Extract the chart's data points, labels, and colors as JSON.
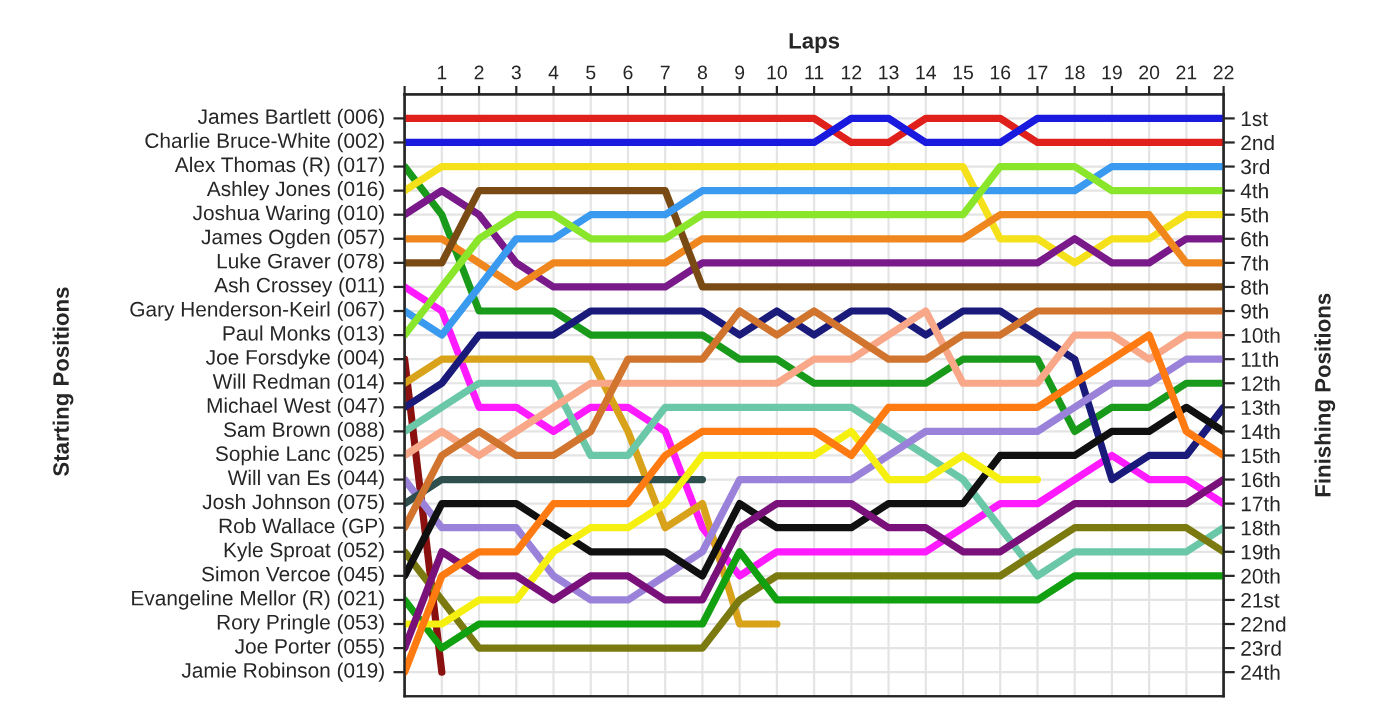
{
  "chart_data": {
    "type": "line",
    "xlabel": "Laps",
    "annotations": [
      "Starting Positions"
    ],
    "y2label": "Finishing Positions",
    "x": [
      0,
      1,
      2,
      3,
      4,
      5,
      6,
      7,
      8,
      9,
      10,
      11,
      12,
      13,
      14,
      15,
      16,
      17,
      18,
      19,
      20,
      21,
      22
    ],
    "xlim": [
      0,
      22
    ],
    "xticks": [
      {
        "value": 0,
        "label": null
      },
      1,
      2,
      3,
      4,
      5,
      6,
      7,
      8,
      9,
      10,
      11,
      12,
      13,
      14,
      15,
      16,
      17,
      18,
      19,
      20,
      21,
      22
    ],
    "y2lim": [
      25,
      0
    ],
    "y2ticks": [
      {
        "value": 1,
        "label": "1st"
      },
      {
        "value": 2,
        "label": "2nd"
      },
      {
        "value": 3,
        "label": "3rd"
      },
      {
        "value": 4,
        "label": "4th"
      },
      {
        "value": 5,
        "label": "5th"
      },
      {
        "value": 6,
        "label": "6th"
      },
      {
        "value": 7,
        "label": "7th"
      },
      {
        "value": 8,
        "label": "8th"
      },
      {
        "value": 9,
        "label": "9th"
      },
      {
        "value": 10,
        "label": "10th"
      },
      {
        "value": 11,
        "label": "11th"
      },
      {
        "value": 12,
        "label": "12th"
      },
      {
        "value": 13,
        "label": "13th"
      },
      {
        "value": 14,
        "label": "14th"
      },
      {
        "value": 15,
        "label": "15th"
      },
      {
        "value": 16,
        "label": "16th"
      },
      {
        "value": 17,
        "label": "17th"
      },
      {
        "value": 18,
        "label": "18th"
      },
      {
        "value": 19,
        "label": "19th"
      },
      {
        "value": 20,
        "label": "20th"
      },
      {
        "value": 21,
        "label": "21st"
      },
      {
        "value": 22,
        "label": "22nd"
      },
      {
        "value": 23,
        "label": "23rd"
      },
      {
        "value": 24,
        "label": "24th"
      }
    ],
    "grid": true,
    "legend": false,
    "marker": "none",
    "line_style": "solid",
    "series": [
      {
        "axis": "y2",
        "name": "James Bartlett (006)",
        "color": "#e0201b",
        "values": [
          1,
          1,
          1,
          1,
          1,
          1,
          1,
          1,
          1,
          1,
          1,
          1,
          2,
          2,
          1,
          1,
          1,
          2,
          2,
          2,
          2,
          2,
          2
        ]
      },
      {
        "axis": "y2",
        "name": "Charlie Bruce-White (002)",
        "color": "#1a1adf",
        "values": [
          2,
          2,
          2,
          2,
          2,
          2,
          2,
          2,
          2,
          2,
          2,
          2,
          1,
          1,
          2,
          2,
          2,
          1,
          1,
          1,
          1,
          1,
          1
        ]
      },
      {
        "axis": "y2",
        "name": "Alex Thomas (R) (017)",
        "color": "#1a9a1a",
        "values": [
          3,
          5,
          9,
          9,
          9,
          10,
          10,
          10,
          10,
          11,
          11,
          12,
          12,
          12,
          12,
          11,
          11,
          11,
          14,
          13,
          13,
          12,
          12
        ]
      },
      {
        "axis": "y2",
        "name": "Ashley Jones (016)",
        "color": "#f5e11a",
        "values": [
          4,
          3,
          3,
          3,
          3,
          3,
          3,
          3,
          3,
          3,
          3,
          3,
          3,
          3,
          3,
          3,
          6,
          6,
          7,
          6,
          6,
          5,
          5
        ]
      },
      {
        "axis": "y2",
        "name": "Joshua Waring (010)",
        "color": "#7a1a8a",
        "values": [
          5,
          4,
          5,
          7,
          8,
          8,
          8,
          8,
          7,
          7,
          7,
          7,
          7,
          7,
          7,
          7,
          7,
          7,
          6,
          7,
          7,
          6,
          6
        ]
      },
      {
        "axis": "y2",
        "name": "James Ogden (057)",
        "color": "#f0861e",
        "values": [
          6,
          6,
          7,
          8,
          7,
          7,
          7,
          7,
          6,
          6,
          6,
          6,
          6,
          6,
          6,
          6,
          5,
          5,
          5,
          5,
          5,
          7,
          7
        ]
      },
      {
        "axis": "y2",
        "name": "Luke Graver (078)",
        "color": "#7a4a14",
        "values": [
          7,
          7,
          4,
          4,
          4,
          4,
          4,
          4,
          8,
          8,
          8,
          8,
          8,
          8,
          8,
          8,
          8,
          8,
          8,
          8,
          8,
          8,
          8
        ]
      },
      {
        "axis": "y2",
        "name": "Ash Crossey (011)",
        "color": "#ff1aff",
        "values": [
          8,
          9,
          13,
          13,
          14,
          13,
          13,
          14,
          18,
          20,
          19,
          19,
          19,
          19,
          19,
          18,
          17,
          17,
          16,
          15,
          16,
          16,
          17
        ]
      },
      {
        "axis": "y2",
        "name": "Gary Henderson-Keirl (067)",
        "color": "#3a9af0",
        "values": [
          9,
          10,
          8,
          6,
          6,
          5,
          5,
          5,
          4,
          4,
          4,
          4,
          4,
          4,
          4,
          4,
          4,
          4,
          4,
          3,
          3,
          3,
          3
        ]
      },
      {
        "axis": "y2",
        "name": "Paul Monks (013)",
        "color": "#8ae62a",
        "values": [
          10,
          8,
          6,
          5,
          5,
          6,
          6,
          6,
          5,
          5,
          5,
          5,
          5,
          5,
          5,
          5,
          3,
          3,
          3,
          4,
          4,
          4,
          4
        ]
      },
      {
        "axis": "y2",
        "name": "Joe Forsdyke (004)",
        "color": "#8b1010",
        "values": [
          11,
          24,
          null,
          null,
          null,
          null,
          null,
          null,
          null,
          null,
          null,
          null,
          null,
          null,
          null,
          null,
          null,
          null,
          null,
          null,
          null,
          null,
          null
        ]
      },
      {
        "axis": "y2",
        "name": "Will Redman (014)",
        "color": "#d8a21a",
        "values": [
          12,
          11,
          11,
          11,
          11,
          11,
          14,
          18,
          17,
          22,
          22,
          null,
          null,
          null,
          null,
          null,
          null,
          null,
          null,
          null,
          null,
          null,
          null
        ]
      },
      {
        "axis": "y2",
        "name": "Michael West (047)",
        "color": "#1a1a7a",
        "values": [
          13,
          12,
          10,
          10,
          10,
          9,
          9,
          9,
          9,
          10,
          9,
          10,
          9,
          9,
          10,
          9,
          9,
          10,
          11,
          16,
          15,
          15,
          13
        ]
      },
      {
        "axis": "y2",
        "name": "Sam Brown (088)",
        "color": "#6ac8a8",
        "values": [
          14,
          13,
          12,
          12,
          12,
          15,
          15,
          13,
          13,
          13,
          13,
          13,
          13,
          14,
          15,
          16,
          18,
          20,
          19,
          19,
          19,
          19,
          18
        ]
      },
      {
        "axis": "y2",
        "name": "Sophie Lanc (025)",
        "color": "#f8a888",
        "values": [
          15,
          14,
          15,
          14,
          13,
          12,
          12,
          12,
          12,
          12,
          12,
          11,
          11,
          10,
          9,
          12,
          12,
          12,
          10,
          10,
          11,
          10,
          10
        ]
      },
      {
        "axis": "y2",
        "name": "Will van Es (044)",
        "color": "#9a82da",
        "values": [
          16,
          18,
          18,
          18,
          20,
          21,
          21,
          20,
          19,
          16,
          16,
          16,
          16,
          15,
          14,
          14,
          14,
          14,
          13,
          12,
          12,
          11,
          11
        ]
      },
      {
        "axis": "y2",
        "name": "Josh Johnson (075)",
        "color": "#2f4f4f",
        "values": [
          17,
          16,
          16,
          16,
          16,
          16,
          16,
          16,
          16,
          null,
          null,
          null,
          null,
          null,
          null,
          null,
          null,
          null,
          null,
          null,
          null,
          null,
          null
        ]
      },
      {
        "axis": "y2",
        "name": "Rob Wallace (GP)",
        "color": "#d0742e",
        "values": [
          18,
          15,
          14,
          15,
          15,
          14,
          11,
          11,
          11,
          9,
          10,
          9,
          10,
          11,
          11,
          10,
          10,
          9,
          9,
          9,
          9,
          9,
          9
        ]
      },
      {
        "axis": "y2",
        "name": "Kyle Sproat (052)",
        "color": "#7a7a10",
        "values": [
          19,
          21,
          23,
          23,
          23,
          23,
          23,
          23,
          23,
          21,
          20,
          20,
          20,
          20,
          20,
          20,
          20,
          19,
          18,
          18,
          18,
          18,
          19
        ]
      },
      {
        "axis": "y2",
        "name": "Simon Vercoe (045)",
        "color": "#101010",
        "values": [
          20,
          17,
          17,
          17,
          18,
          19,
          19,
          19,
          20,
          17,
          18,
          18,
          18,
          17,
          17,
          17,
          15,
          15,
          15,
          14,
          14,
          13,
          14
        ]
      },
      {
        "axis": "y2",
        "name": "Evangeline Mellor (R) (021)",
        "color": "#10a010",
        "values": [
          21,
          23,
          22,
          22,
          22,
          22,
          22,
          22,
          22,
          19,
          21,
          21,
          21,
          21,
          21,
          21,
          21,
          21,
          20,
          20,
          20,
          20,
          20
        ]
      },
      {
        "axis": "y2",
        "name": "Rory Pringle (053)",
        "color": "#f5f010",
        "values": [
          22,
          22,
          21,
          21,
          19,
          18,
          18,
          17,
          15,
          15,
          15,
          15,
          14,
          16,
          16,
          15,
          16,
          16,
          null,
          null,
          null,
          null,
          null
        ]
      },
      {
        "axis": "y2",
        "name": "Joe Porter (055)",
        "color": "#7a107a",
        "values": [
          23,
          19,
          20,
          20,
          21,
          20,
          20,
          21,
          21,
          18,
          17,
          17,
          17,
          18,
          18,
          19,
          19,
          18,
          17,
          17,
          17,
          17,
          16
        ]
      },
      {
        "axis": "y2",
        "name": "Jamie Robinson (019)",
        "color": "#ff7a10",
        "values": [
          24,
          20,
          19,
          19,
          17,
          17,
          17,
          15,
          14,
          14,
          14,
          14,
          15,
          13,
          13,
          13,
          13,
          13,
          12,
          11,
          10,
          14,
          15
        ]
      }
    ]
  }
}
